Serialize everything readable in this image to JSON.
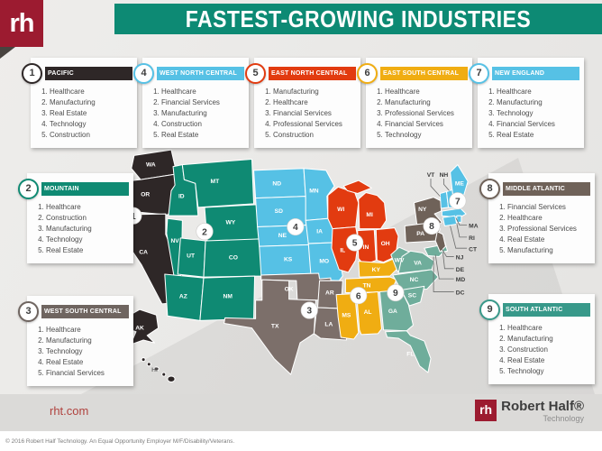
{
  "theme": {
    "banner": "#0d8a74",
    "brand_red": "#9c1b30",
    "link_red": "#b0423e"
  },
  "header": {
    "logo_text": "rh",
    "title": "FASTEST-GROWING INDUSTRIES"
  },
  "regions": [
    {
      "id": "1",
      "name": "PACIFIC",
      "color": "#2e2727",
      "industries": [
        "Healthcare",
        "Manufacturing",
        "Real Estate",
        "Technology",
        "Construction"
      ]
    },
    {
      "id": "2",
      "name": "MOUNTAIN",
      "color": "#0f8a73",
      "industries": [
        "Healthcare",
        "Construction",
        "Manufacturing",
        "Technology",
        "Real Estate"
      ]
    },
    {
      "id": "3",
      "name": "WEST SOUTH CENTRAL",
      "color": "#6f6560",
      "map_color": "#7c6f6a",
      "industries": [
        "Healthcare",
        "Manufacturing",
        "Technology",
        "Real Estate",
        "Financial Services"
      ]
    },
    {
      "id": "4",
      "name": "WEST NORTH CENTRAL",
      "color": "#56c1e5",
      "industries": [
        "Healthcare",
        "Financial Services",
        "Manufacturing",
        "Construction",
        "Real Estate"
      ]
    },
    {
      "id": "5",
      "name": "EAST NORTH CENTRAL",
      "color": "#e23b10",
      "industries": [
        "Manufacturing",
        "Healthcare",
        "Financial Services",
        "Professional Services",
        "Construction"
      ]
    },
    {
      "id": "6",
      "name": "EAST SOUTH CENTRAL",
      "color": "#f0ad12",
      "industries": [
        "Healthcare",
        "Manufacturing",
        "Professional Services",
        "Financial Services",
        "Technology"
      ]
    },
    {
      "id": "7",
      "name": "NEW ENGLAND",
      "color": "#56c1e5",
      "industries": [
        "Healthcare",
        "Manufacturing",
        "Technology",
        "Financial Services",
        "Real Estate"
      ]
    },
    {
      "id": "8",
      "name": "MIDDLE ATLANTIC",
      "color": "#6f6259",
      "industries": [
        "Financial Services",
        "Healthcare",
        "Professional Services",
        "Real Estate",
        "Manufacturing"
      ]
    },
    {
      "id": "9",
      "name": "SOUTH ATLANTIC",
      "color": "#38998a",
      "map_color": "#6fad9b",
      "industries": [
        "Healthcare",
        "Manufacturing",
        "Construction",
        "Real Estate",
        "Technology"
      ]
    }
  ],
  "map": {
    "state_labels": [
      "WA",
      "OR",
      "CA",
      "NV",
      "ID",
      "MT",
      "WY",
      "UT",
      "CO",
      "AZ",
      "NM",
      "ND",
      "SD",
      "NE",
      "KS",
      "MN",
      "IA",
      "MO",
      "OK",
      "AR",
      "TX",
      "LA",
      "WI",
      "MI",
      "IL",
      "IN",
      "OH",
      "KY",
      "TN",
      "MS",
      "AL",
      "WV",
      "VA",
      "NC",
      "SC",
      "GA",
      "FL",
      "NY",
      "PA",
      "ME",
      "AK",
      "HI"
    ],
    "callouts": [
      "VT",
      "NH",
      "MA",
      "RI",
      "CT",
      "NJ",
      "DE",
      "MD",
      "DC"
    ],
    "badges": [
      "1",
      "2",
      "3",
      "4",
      "5",
      "6",
      "7",
      "8",
      "9"
    ]
  },
  "footer": {
    "website": "rht.com",
    "brand_logo": "rh",
    "brand_name": "Robert Half®",
    "brand_sub": "Technology",
    "copyright": "© 2016 Robert Half Technology. An Equal Opportunity Employer M/F/Disability/Veterans."
  }
}
